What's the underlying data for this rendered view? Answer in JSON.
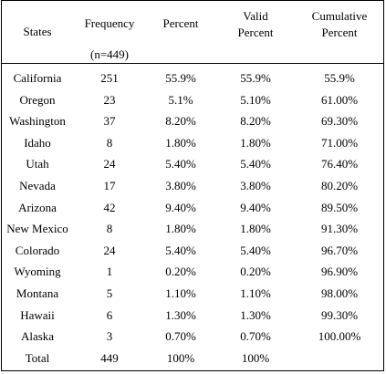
{
  "headers": {
    "states": "States",
    "frequency": "Frequency",
    "frequency_n": "(n=449)",
    "percent": "Percent",
    "valid_percent_1": "Valid",
    "valid_percent_2": "Percent",
    "cumulative_percent_1": "Cumulative",
    "cumulative_percent_2": "Percent"
  },
  "rows": [
    {
      "state": "California",
      "frequency": "251",
      "percent": "55.9%",
      "valid": "55.9%",
      "cumulative": "55.9%"
    },
    {
      "state": "Oregon",
      "frequency": "23",
      "percent": "5.1%",
      "valid": "5.10%",
      "cumulative": "61.00%"
    },
    {
      "state": "Washington",
      "frequency": "37",
      "percent": "8.20%",
      "valid": "8.20%",
      "cumulative": "69.30%"
    },
    {
      "state": "Idaho",
      "frequency": "8",
      "percent": "1.80%",
      "valid": "1.80%",
      "cumulative": "71.00%"
    },
    {
      "state": "Utah",
      "frequency": "24",
      "percent": "5.40%",
      "valid": "5.40%",
      "cumulative": "76.40%"
    },
    {
      "state": "Nevada",
      "frequency": "17",
      "percent": "3.80%",
      "valid": "3.80%",
      "cumulative": "80.20%"
    },
    {
      "state": "Arizona",
      "frequency": "42",
      "percent": "9.40%",
      "valid": "9.40%",
      "cumulative": "89.50%"
    },
    {
      "state": "New Mexico",
      "frequency": "8",
      "percent": "1.80%",
      "valid": "1.80%",
      "cumulative": "91.30%"
    },
    {
      "state": "Colorado",
      "frequency": "24",
      "percent": "5.40%",
      "valid": "5.40%",
      "cumulative": "96.70%"
    },
    {
      "state": "Wyoming",
      "frequency": "1",
      "percent": "0.20%",
      "valid": "0.20%",
      "cumulative": "96.90%"
    },
    {
      "state": "Montana",
      "frequency": "5",
      "percent": "1.10%",
      "valid": "1.10%",
      "cumulative": "98.00%"
    },
    {
      "state": "Hawaii",
      "frequency": "6",
      "percent": "1.30%",
      "valid": "1.30%",
      "cumulative": "99.30%"
    },
    {
      "state": "Alaska",
      "frequency": "3",
      "percent": "0.70%",
      "valid": "0.70%",
      "cumulative": "100.00%"
    },
    {
      "state": "Total",
      "frequency": "449",
      "percent": "100%",
      "valid": "100%",
      "cumulative": ""
    }
  ]
}
